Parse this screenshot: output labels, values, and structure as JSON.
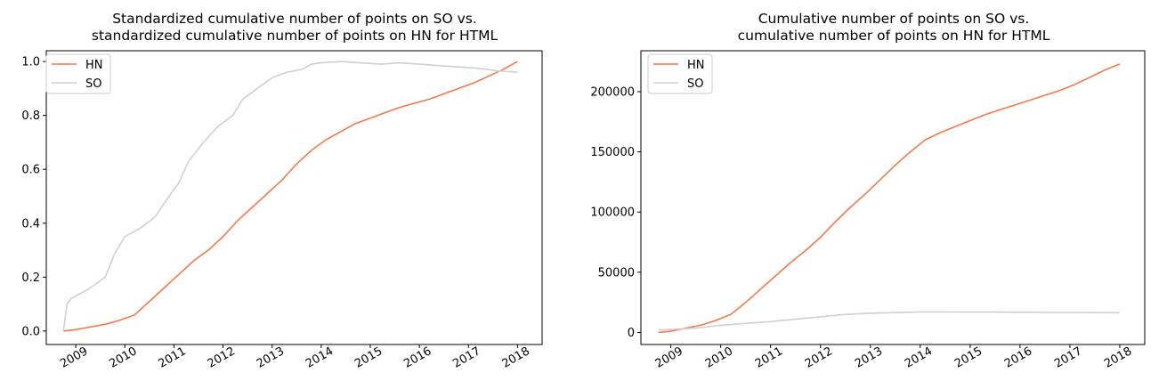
{
  "colors": {
    "HN": "#f4794a",
    "SO": "#d0d0d0"
  },
  "chart_data": [
    {
      "type": "line",
      "title_lines": [
        "Standardized cumulative number of points on SO vs.",
        "standardized cumulative number of points on HN for HTML"
      ],
      "xlabel": "",
      "ylabel": "",
      "xlim": [
        2008.4,
        2018.5
      ],
      "ylim": [
        -0.05,
        1.04
      ],
      "xticks": [
        2009,
        2010,
        2011,
        2012,
        2013,
        2014,
        2015,
        2016,
        2017,
        2018
      ],
      "yticks": [
        0.0,
        0.2,
        0.4,
        0.6,
        0.8,
        1.0
      ],
      "ytick_labels": [
        "0.0",
        "0.2",
        "0.4",
        "0.6",
        "0.8",
        "1.0"
      ],
      "legend": "upper left",
      "series": [
        {
          "name": "HN",
          "x": [
            2008.75,
            2009.0,
            2009.3,
            2009.6,
            2009.9,
            2010.2,
            2010.5,
            2010.8,
            2011.1,
            2011.4,
            2011.7,
            2012.0,
            2012.3,
            2012.6,
            2012.9,
            2013.2,
            2013.5,
            2013.8,
            2014.1,
            2014.4,
            2014.7,
            2015.0,
            2015.3,
            2015.6,
            2015.9,
            2016.2,
            2016.5,
            2016.8,
            2017.1,
            2017.4,
            2017.7,
            2018.0
          ],
          "y": [
            0.0,
            0.005,
            0.015,
            0.025,
            0.04,
            0.06,
            0.11,
            0.16,
            0.21,
            0.26,
            0.3,
            0.35,
            0.41,
            0.46,
            0.51,
            0.56,
            0.62,
            0.67,
            0.71,
            0.74,
            0.77,
            0.79,
            0.81,
            0.83,
            0.845,
            0.86,
            0.88,
            0.9,
            0.92,
            0.945,
            0.97,
            1.0
          ]
        },
        {
          "name": "SO",
          "x": [
            2008.75,
            2008.82,
            2008.9,
            2009.1,
            2009.3,
            2009.6,
            2009.8,
            2010.0,
            2010.3,
            2010.6,
            2010.9,
            2011.1,
            2011.3,
            2011.6,
            2011.9,
            2012.2,
            2012.4,
            2012.7,
            2013.0,
            2013.3,
            2013.6,
            2013.8,
            2014.0,
            2014.4,
            2014.8,
            2015.2,
            2015.6,
            2016.0,
            2016.4,
            2016.8,
            2017.2,
            2017.6,
            2018.0
          ],
          "y": [
            0.0,
            0.1,
            0.12,
            0.14,
            0.16,
            0.2,
            0.29,
            0.35,
            0.38,
            0.42,
            0.5,
            0.55,
            0.63,
            0.7,
            0.76,
            0.8,
            0.86,
            0.9,
            0.94,
            0.96,
            0.97,
            0.99,
            0.995,
            1.0,
            0.995,
            0.99,
            0.995,
            0.99,
            0.985,
            0.98,
            0.975,
            0.965,
            0.96
          ]
        }
      ]
    },
    {
      "type": "line",
      "title_lines": [
        "Cumulative number of points on SO vs.",
        "cumulative number of points on HN for HTML"
      ],
      "xlabel": "",
      "ylabel": "",
      "xlim": [
        2008.4,
        2018.5
      ],
      "ylim": [
        -10000,
        234000
      ],
      "xticks": [
        2009,
        2010,
        2011,
        2012,
        2013,
        2014,
        2015,
        2016,
        2017,
        2018
      ],
      "yticks": [
        0,
        50000,
        100000,
        150000,
        200000
      ],
      "ytick_labels": [
        "0",
        "50000",
        "100000",
        "150000",
        "200000"
      ],
      "legend": "upper left",
      "series": [
        {
          "name": "HN",
          "x": [
            2008.75,
            2009.0,
            2009.3,
            2009.6,
            2009.9,
            2010.2,
            2010.5,
            2010.8,
            2011.1,
            2011.4,
            2011.7,
            2012.0,
            2012.3,
            2012.6,
            2012.9,
            2013.2,
            2013.5,
            2013.8,
            2014.1,
            2014.4,
            2014.7,
            2015.0,
            2015.3,
            2015.6,
            2015.9,
            2016.2,
            2016.5,
            2016.8,
            2017.1,
            2017.4,
            2017.7,
            2018.0
          ],
          "y": [
            0,
            1000,
            3500,
            6000,
            10000,
            15000,
            25000,
            36000,
            47000,
            58000,
            68000,
            79000,
            92000,
            104000,
            115000,
            127000,
            139000,
            150000,
            160000,
            166000,
            171000,
            176000,
            181000,
            185000,
            189000,
            193000,
            197000,
            201000,
            206000,
            212000,
            218000,
            223000
          ]
        },
        {
          "name": "SO",
          "x": [
            2008.75,
            2009.0,
            2009.5,
            2010.0,
            2010.5,
            2011.0,
            2011.5,
            2012.0,
            2012.5,
            2013.0,
            2013.5,
            2014.0,
            2014.5,
            2015.0,
            2015.5,
            2016.0,
            2016.5,
            2017.0,
            2017.5,
            2018.0
          ],
          "y": [
            2000,
            2500,
            3500,
            6000,
            7500,
            9000,
            11000,
            13000,
            15000,
            16000,
            16500,
            17000,
            17000,
            16900,
            16900,
            16800,
            16700,
            16600,
            16500,
            16400
          ]
        }
      ]
    }
  ]
}
